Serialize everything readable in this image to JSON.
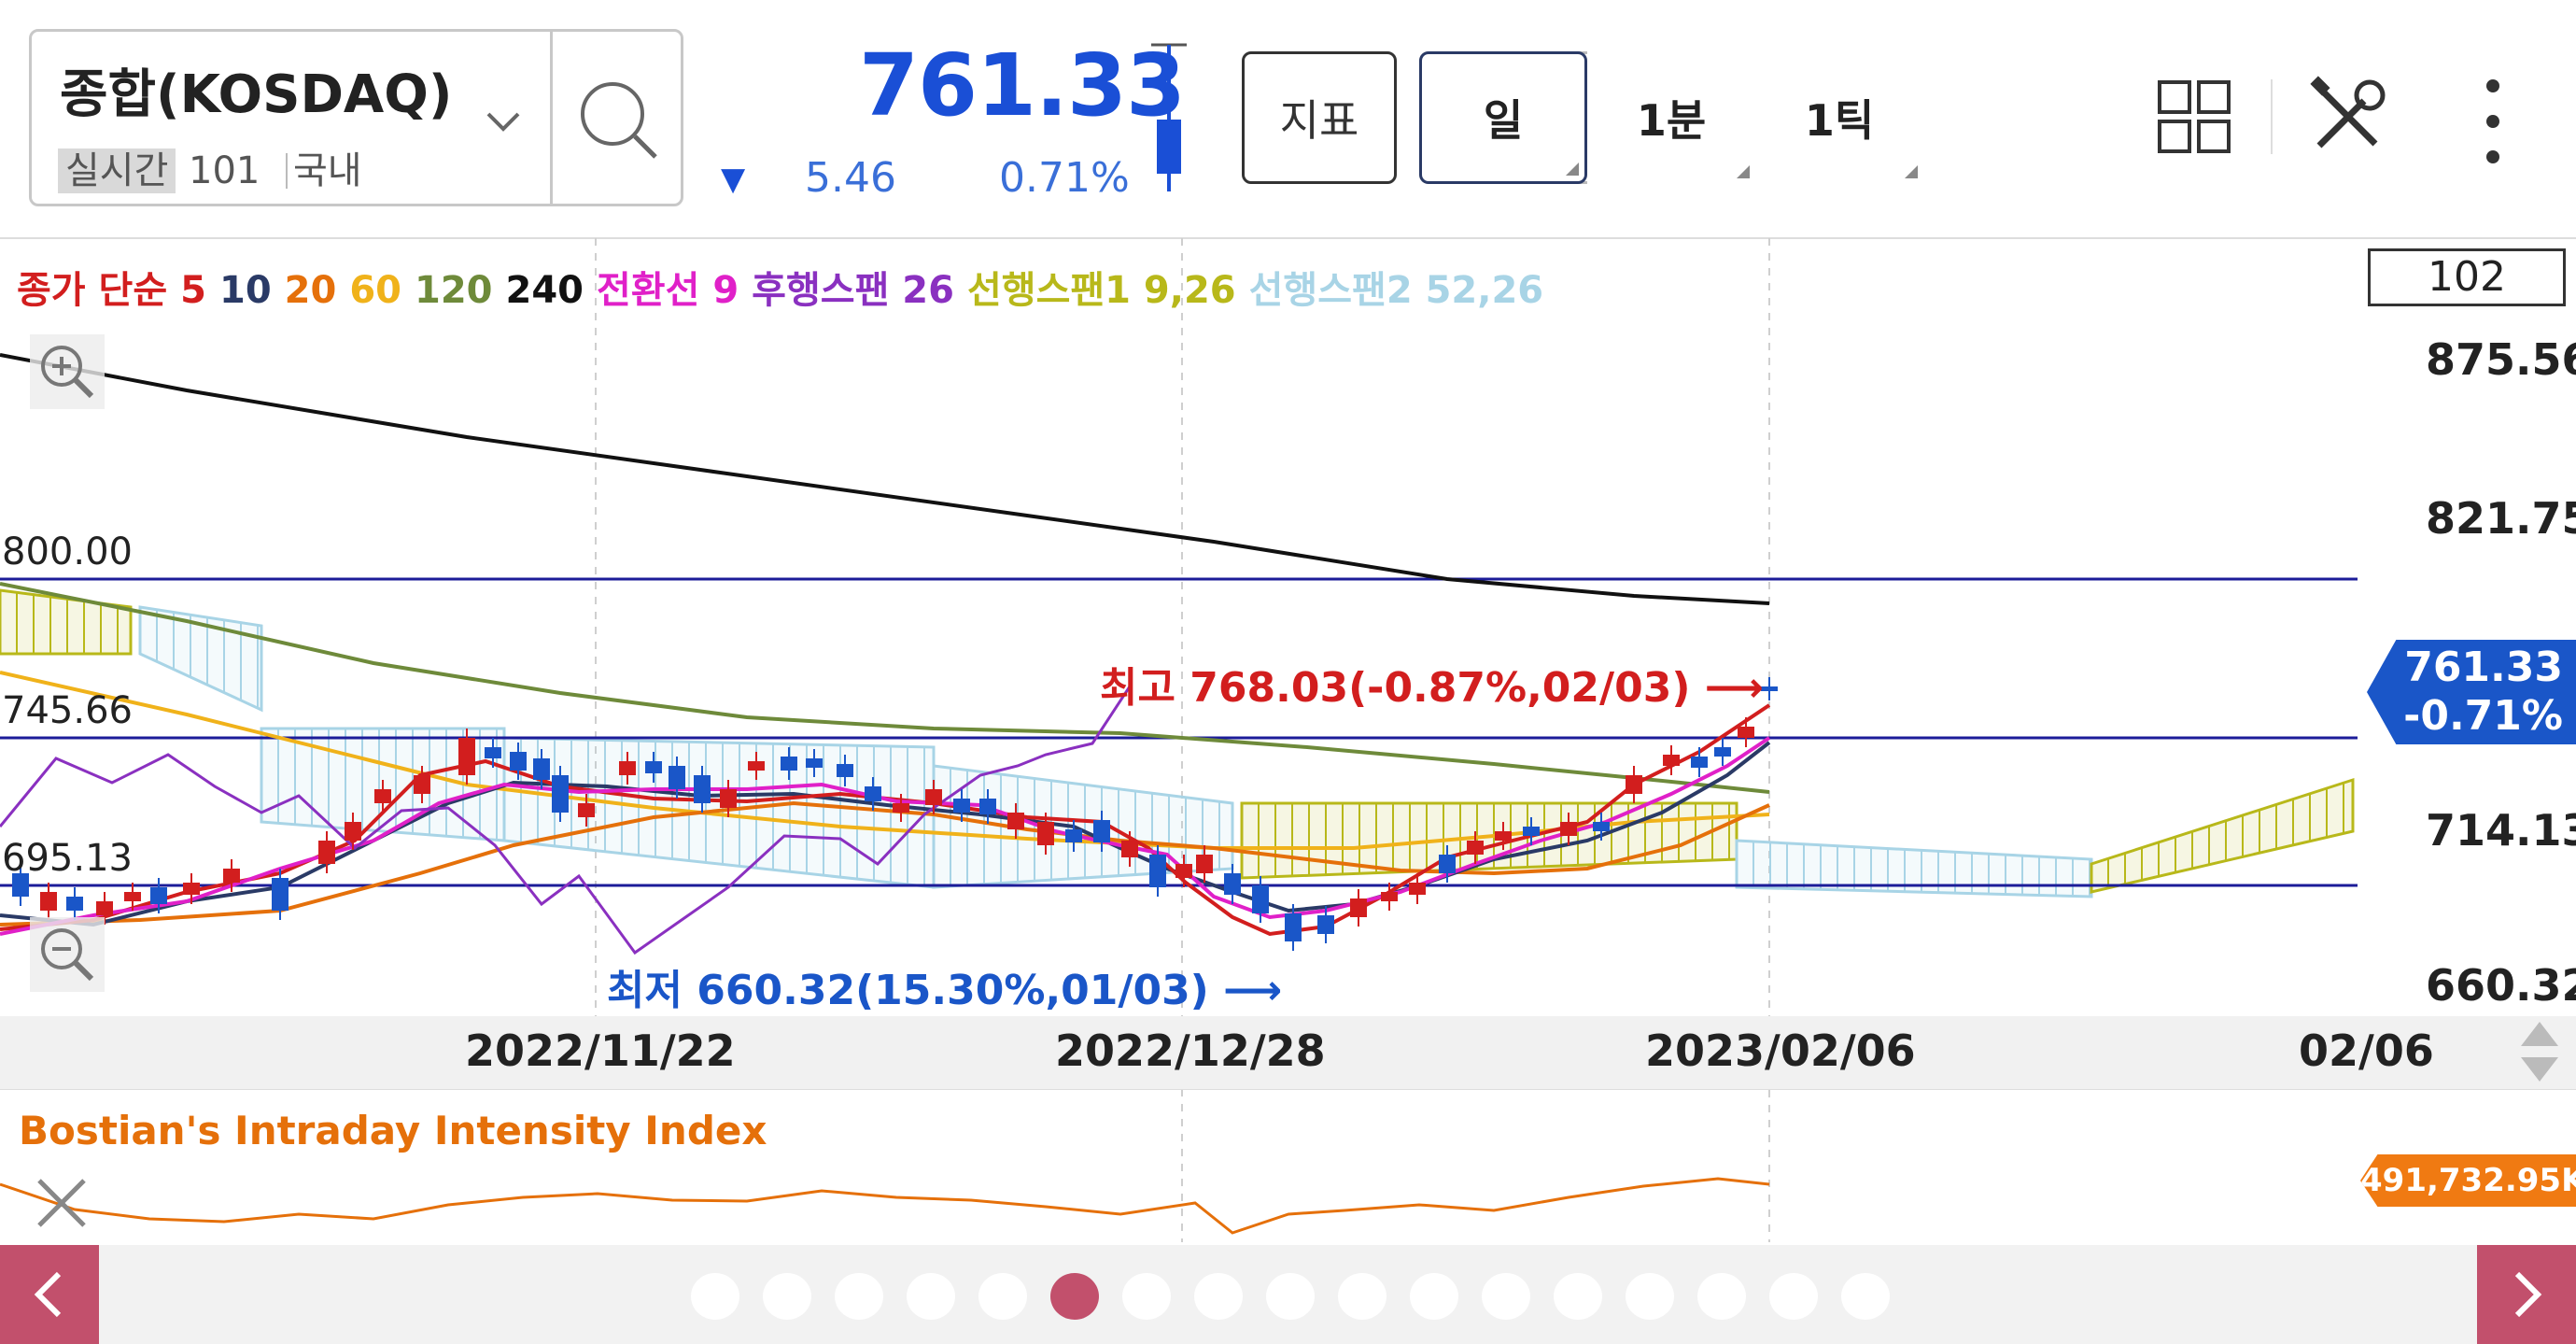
{
  "header": {
    "symbol_name": "종합(KOSDAQ)",
    "realtime_label": "실시간",
    "market_code": "101",
    "market_region": "국내",
    "price": "761.33",
    "change_abs": "5.46",
    "change_pct": "0.71%",
    "indicator_button": "지표",
    "period_tabs": [
      "일",
      "1분",
      "1틱"
    ],
    "active_tab": "일"
  },
  "colors": {
    "up": "#d21e1e",
    "down": "#1a56c8",
    "accent_price": "#1a4fd6",
    "indicator": "#f07a12",
    "nav": "#c2506c"
  },
  "legend": [
    {
      "text": "종가 단순",
      "color": "#d21e1e"
    },
    {
      "text": "5",
      "color": "#d21e1e"
    },
    {
      "text": "10",
      "color": "#2a3a66"
    },
    {
      "text": "20",
      "color": "#e5700a"
    },
    {
      "text": "60",
      "color": "#f0b21a"
    },
    {
      "text": "120",
      "color": "#6e8a3a"
    },
    {
      "text": "240",
      "color": "#111111"
    },
    {
      "text": "전환선 9",
      "color": "#e020c8"
    },
    {
      "text": "후행스팬 26",
      "color": "#8a30c0"
    },
    {
      "text": "선행스팬1 9,26",
      "color": "#b8b81a"
    },
    {
      "text": "선행스팬2 52,26",
      "color": "#a8d4e6"
    }
  ],
  "chart": {
    "candle_count": "102",
    "y_axis_labels": [
      "875.56",
      "821.75",
      "714.13",
      "660.32"
    ],
    "horizontal_lines": [
      "800.00",
      "745.66",
      "695.13"
    ],
    "current_price": "761.33",
    "current_change": "-0.71%",
    "high_note": "최고 768.03(-0.87%,02/03)",
    "low_note": "최저 660.32(15.30%,01/03)",
    "x_axis_labels": [
      "2022/11/22",
      "2022/12/28",
      "2023/02/06",
      "02/06"
    ]
  },
  "chart_data": {
    "type": "line",
    "ylim": [
      660.32,
      875.56
    ],
    "horizontal_levels": [
      800.0,
      745.66,
      695.13
    ],
    "high": {
      "value": 768.03,
      "date": "02/03"
    },
    "low": {
      "value": 660.32,
      "date": "01/03"
    },
    "last_close": 761.33
  },
  "indicator_pane": {
    "title": "Bostian's Intraday Intensity Index",
    "value": "491,732.95K"
  },
  "footer": {
    "page_count": 17,
    "active_page": 5
  }
}
